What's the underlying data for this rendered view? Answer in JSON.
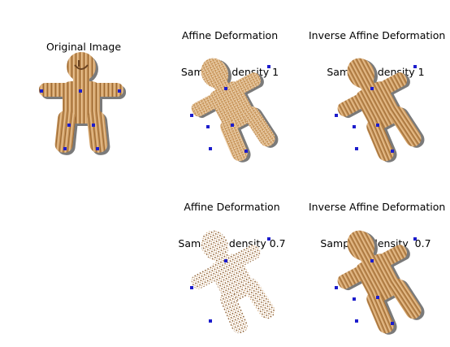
{
  "panels": {
    "original": {
      "title": "Original Image"
    },
    "affine_1": {
      "title_line1": "Affine Deformation",
      "title_line2": "Sampling density 1"
    },
    "inverse_1": {
      "title_line1": "Inverse Affine Deformation",
      "title_line2": "Sampling density 1"
    },
    "affine_07": {
      "title_line1": "Affine Deformation",
      "title_line2": "Sampling density 0.7"
    },
    "inverse_07": {
      "title_line1": "Inverse Affine Deformation",
      "title_line2": "Sampling density  0.7"
    }
  },
  "colors": {
    "cookie_base": "#c8955a",
    "cookie_light": "#e3b98a",
    "cookie_dark": "#8a5a2b",
    "shadow": "#7a7a7a",
    "control_point": "#1d1dcc"
  }
}
